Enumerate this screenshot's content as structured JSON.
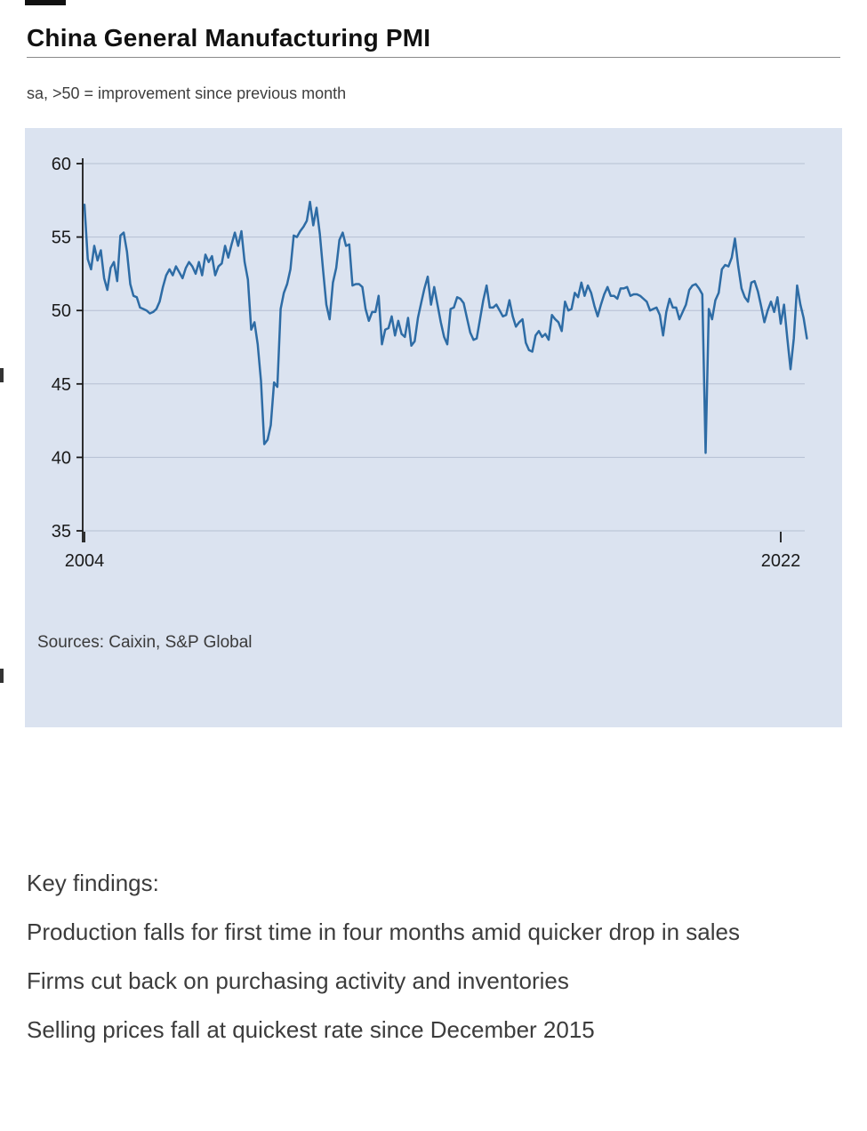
{
  "document": {
    "key_findings_heading": "Key findings:",
    "key_findings": [
      "Production falls for first time in four months amid quicker drop in sales",
      "Firms cut back on purchasing activity and inventories",
      "Selling prices fall at quickest rate since December 2015"
    ]
  },
  "colors": {
    "line": "#2e6ca5",
    "plot_background": "#dbe3f0",
    "grid": "#b6c0d2",
    "axis": "#1a1a1a",
    "body_text": "#3c3c3c"
  },
  "chart_data": {
    "type": "line",
    "title": "China General Manufacturing PMI",
    "subtitle": "sa, >50 = improvement since previous month",
    "source": "Sources: Caixin, S&P Global",
    "series_name": "China Caixin General Manufacturing PMI (seasonally adjusted)",
    "frequency": "monthly",
    "start": "2004-04",
    "end": "2022-09",
    "ylim": [
      35,
      60
    ],
    "yticks": [
      60,
      55,
      50,
      45,
      40,
      35
    ],
    "xticks": [
      {
        "label": "2004",
        "month_index": 0
      },
      {
        "label": "2022",
        "month_index": 213
      }
    ],
    "grid": true,
    "legend": "none",
    "values": [
      57.2,
      53.5,
      52.8,
      54.4,
      53.4,
      54.1,
      52.2,
      51.4,
      52.9,
      53.3,
      52.0,
      55.1,
      55.3,
      54.0,
      51.8,
      51.0,
      50.9,
      50.2,
      50.1,
      50.0,
      49.8,
      49.9,
      50.1,
      50.6,
      51.6,
      52.4,
      52.8,
      52.4,
      53.0,
      52.6,
      52.2,
      52.9,
      53.3,
      53.0,
      52.5,
      53.3,
      52.4,
      53.8,
      53.3,
      53.7,
      52.4,
      53.0,
      53.2,
      54.4,
      53.6,
      54.5,
      55.3,
      54.4,
      55.4,
      53.3,
      52.1,
      48.7,
      49.2,
      47.7,
      45.2,
      40.9,
      41.2,
      42.2,
      45.1,
      44.8,
      50.1,
      51.2,
      51.8,
      52.8,
      55.1,
      55.0,
      55.4,
      55.7,
      56.1,
      57.4,
      55.8,
      57.0,
      55.2,
      52.7,
      50.4,
      49.4,
      51.9,
      52.9,
      54.8,
      55.3,
      54.4,
      54.5,
      51.7,
      51.8,
      51.8,
      51.6,
      50.1,
      49.3,
      49.9,
      49.9,
      51.0,
      47.7,
      48.7,
      48.8,
      49.6,
      48.3,
      49.3,
      48.4,
      48.2,
      49.5,
      47.6,
      47.9,
      49.5,
      50.5,
      51.5,
      52.3,
      50.4,
      51.6,
      50.4,
      49.2,
      48.2,
      47.7,
      50.1,
      50.2,
      50.9,
      50.8,
      50.5,
      49.5,
      48.5,
      48.0,
      48.1,
      49.4,
      50.7,
      51.7,
      50.2,
      50.2,
      50.4,
      50.0,
      49.6,
      49.7,
      50.7,
      49.6,
      48.9,
      49.2,
      49.4,
      47.8,
      47.3,
      47.2,
      48.3,
      48.6,
      48.2,
      48.4,
      48.0,
      49.7,
      49.4,
      49.2,
      48.6,
      50.6,
      50.0,
      50.1,
      51.2,
      50.9,
      51.9,
      51.0,
      51.7,
      51.2,
      50.3,
      49.6,
      50.4,
      51.1,
      51.6,
      51.0,
      51.0,
      50.8,
      51.5,
      51.5,
      51.6,
      51.0,
      51.1,
      51.1,
      51.0,
      50.8,
      50.6,
      50.0,
      50.1,
      50.2,
      49.7,
      48.3,
      49.9,
      50.8,
      50.2,
      50.2,
      49.4,
      49.9,
      50.4,
      51.4,
      51.7,
      51.8,
      51.5,
      51.1,
      40.3,
      50.1,
      49.4,
      50.7,
      51.2,
      52.8,
      53.1,
      53.0,
      53.6,
      54.9,
      53.0,
      51.5,
      50.9,
      50.6,
      51.9,
      52.0,
      51.3,
      50.3,
      49.2,
      50.0,
      50.6,
      49.9,
      50.9,
      49.1,
      50.4,
      48.1,
      46.0,
      48.1,
      51.7,
      50.4,
      49.5,
      48.1
    ]
  }
}
